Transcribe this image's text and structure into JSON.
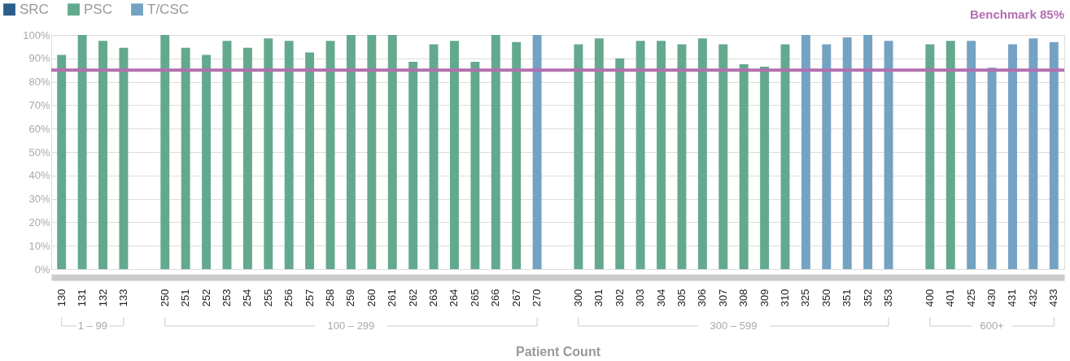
{
  "chart_data": {
    "type": "bar",
    "categories": [
      "130",
      "131",
      "132",
      "133",
      null,
      "250",
      "251",
      "252",
      "253",
      "254",
      "255",
      "256",
      "257",
      "258",
      "259",
      "260",
      "261",
      "262",
      "263",
      "264",
      "265",
      "266",
      "267",
      "270",
      null,
      "300",
      "301",
      "302",
      "303",
      "304",
      "305",
      "306",
      "307",
      "308",
      "309",
      "310",
      "325",
      "350",
      "351",
      "352",
      "353",
      null,
      "400",
      "401",
      "425",
      "430",
      "431",
      "432",
      "433"
    ],
    "series": [
      {
        "name": "SRC",
        "color": "#2b5f8a",
        "values": [
          null,
          null,
          null,
          null,
          null,
          null,
          null,
          null,
          null,
          null,
          null,
          null,
          null,
          null,
          null,
          null,
          null,
          null,
          null,
          null,
          null,
          null,
          null,
          null,
          null,
          null,
          null,
          null,
          null,
          null,
          null,
          null,
          null,
          null,
          null,
          null,
          null,
          null,
          null,
          null,
          null,
          null,
          null,
          null,
          null,
          null,
          null,
          null,
          null
        ]
      },
      {
        "name": "PSC",
        "color": "#63a98e",
        "values": [
          91.5,
          100,
          97.5,
          94.5,
          null,
          100,
          94.5,
          91.5,
          97.5,
          94.5,
          98.5,
          97.5,
          92.5,
          97.5,
          100,
          100,
          100,
          88.5,
          96,
          97.5,
          88.5,
          100,
          97,
          null,
          null,
          96,
          98.5,
          90,
          97.5,
          97.5,
          96,
          98.5,
          96,
          87.5,
          86.5,
          96,
          null,
          null,
          null,
          null,
          null,
          null,
          96,
          97.5,
          null,
          null,
          null,
          null,
          null
        ]
      },
      {
        "name": "T/CSC",
        "color": "#74a2c2",
        "values": [
          null,
          null,
          null,
          null,
          null,
          null,
          null,
          null,
          null,
          null,
          null,
          null,
          null,
          null,
          null,
          null,
          null,
          null,
          null,
          null,
          null,
          null,
          null,
          100,
          null,
          null,
          null,
          null,
          null,
          null,
          null,
          null,
          null,
          null,
          null,
          null,
          100,
          96,
          99,
          100,
          97.5,
          null,
          null,
          null,
          97.5,
          86,
          96,
          98.5,
          97
        ]
      }
    ],
    "xlabel": "Patient Count",
    "ylim": [
      0,
      100
    ],
    "yticks": [
      {
        "value": 0,
        "label": "0%"
      },
      {
        "value": 10,
        "label": "10%"
      },
      {
        "value": 20,
        "label": "20%"
      },
      {
        "value": 30,
        "label": "30%"
      },
      {
        "value": 40,
        "label": "40%"
      },
      {
        "value": 50,
        "label": "50%"
      },
      {
        "value": 60,
        "label": "60%"
      },
      {
        "value": 70,
        "label": "70%"
      },
      {
        "value": 80,
        "label": "80%"
      },
      {
        "value": 90,
        "label": "90%"
      },
      {
        "value": 100,
        "label": "100%"
      }
    ],
    "ref_lines": [
      {
        "axis": "y",
        "value": 85,
        "label": "Benchmark 85%",
        "color": "#b36fb0"
      }
    ],
    "annotations": [
      "1 – 99",
      "100 – 299",
      "300 – 599",
      "600+"
    ],
    "grid": "y",
    "legend": "top left"
  }
}
